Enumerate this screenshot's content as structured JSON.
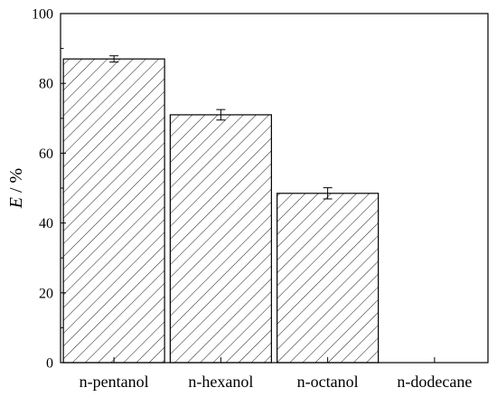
{
  "chart_data": {
    "type": "bar",
    "categories": [
      "n-pentanol",
      "n-hexanol",
      "n-octanol",
      "n-dodecane"
    ],
    "values": [
      87.0,
      71.0,
      48.5,
      0
    ],
    "errors": [
      0.9,
      1.5,
      1.6,
      0
    ],
    "title": "",
    "xlabel": "",
    "ylabel_italic": "E",
    "ylabel_unit": " / %",
    "ylim": [
      0,
      100
    ],
    "yticks": [
      0,
      20,
      40,
      60,
      80,
      100
    ],
    "ytick_labels": [
      "0",
      "20",
      "40",
      "60",
      "80",
      "100"
    ],
    "bar_fill": "hatched",
    "grid": false,
    "legend": "none"
  }
}
